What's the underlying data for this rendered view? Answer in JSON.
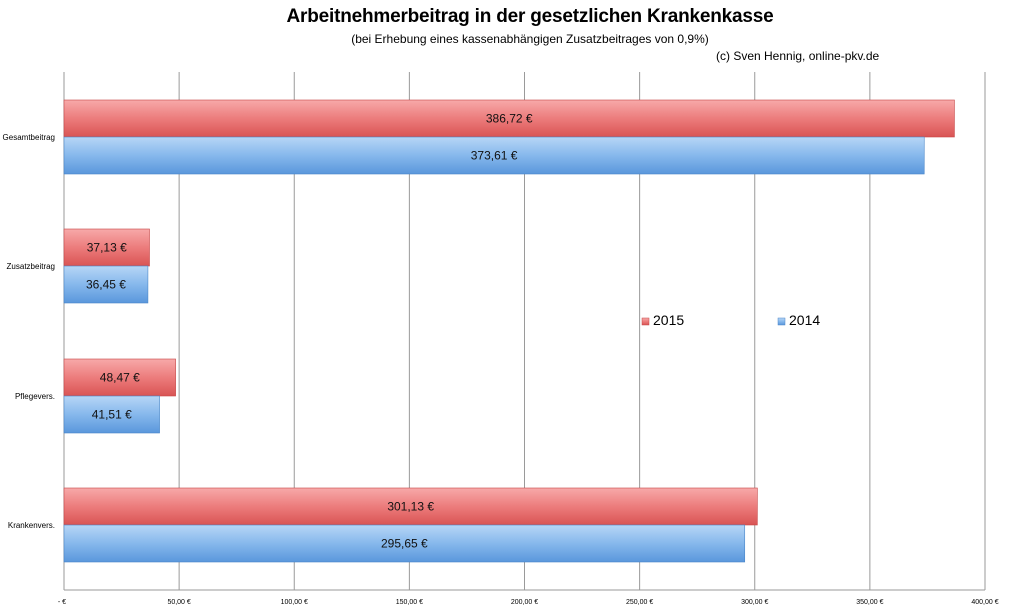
{
  "chart_data": {
    "type": "bar",
    "orientation": "horizontal",
    "title": "Arbeitnehmerbeitrag in der gesetzlichen Krankenkasse",
    "subtitle": "(bei Erhebung eines kassenabhängigen Zusatzbeitrages von 0,9%)",
    "credit": "(c) Sven Hennig, online-pkv.de",
    "categories": [
      "Gesamtbeitrag",
      "Zusatzbeitrag",
      "Pflegevers.",
      "Krankenvers."
    ],
    "series": [
      {
        "name": "2015",
        "color": "#e25b5b",
        "values": [
          386.72,
          37.13,
          48.47,
          301.13
        ],
        "labels": [
          "386,72 €",
          "37,13 €",
          "48,47 €",
          "301,13 €"
        ]
      },
      {
        "name": "2014",
        "color": "#5b9bde",
        "values": [
          373.61,
          36.45,
          41.51,
          295.65
        ],
        "labels": [
          "373,61 €",
          "36,45 €",
          "41,51 €",
          "295,65 €"
        ]
      }
    ],
    "xlim": [
      0,
      400
    ],
    "xticks": [
      0,
      50,
      100,
      150,
      200,
      250,
      300,
      350,
      400
    ],
    "xtick_labels": [
      "-   €",
      "50,00 €",
      "100,00 €",
      "150,00 €",
      "200,00 €",
      "250,00 €",
      "300,00 €",
      "350,00 €",
      "400,00 €"
    ],
    "grid": true,
    "legend_position": "right-middle"
  }
}
